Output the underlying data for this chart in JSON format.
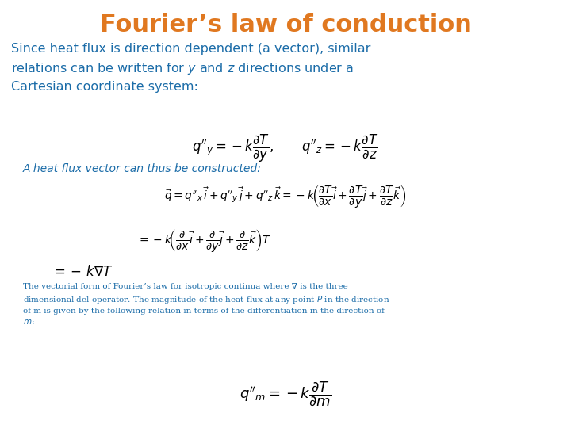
{
  "title": "Fourier’s law of conduction",
  "title_color": "#E07820",
  "title_fontsize": 22,
  "body_color": "#1B6CA8",
  "small_text_color": "#1B6CA8",
  "bg_color": "#FFFFFF",
  "intro_text": "Since heat flux is direction dependent (a vector), similar\nrelations can be written for $y$ and $z$ directions under a\nCartesian coordinate system:",
  "label_A": "A heat flux vector can thus be constructed:",
  "eq1": "$q''_y = -k\\dfrac{\\partial T}{\\partial y},\\qquad q''_z = -k\\dfrac{\\partial T}{\\partial z}$",
  "eq2": "$\\vec{q} = q''_x\\,\\vec{i} + q''_y\\,\\vec{j} + q''_z\\,\\vec{k} = -k\\!\\left(\\dfrac{\\partial T}{\\partial x}\\vec{i} + \\dfrac{\\partial T}{\\partial y}\\vec{j} + \\dfrac{\\partial T}{\\partial z}\\vec{k}\\right)$",
  "eq3": "$= -k\\!\\left(\\dfrac{\\partial}{\\partial x}\\vec{i} + \\dfrac{\\partial}{\\partial y}\\vec{j} + \\dfrac{\\partial}{\\partial z}\\vec{k}\\right)T$",
  "eq4": "$= -\\,k\\nabla T$",
  "small_text": "The vectorial form of Fourier’s law for isotropic continua where ∇ is the three\ndimensional del operator. The magnitude of the heat flux at any point $P$ in the direction\nof m is given by the following relation in terms of the differentiation in the direction of\n$m$:",
  "eq5": "$q''_m = -k\\dfrac{\\partial T}{\\partial m}$"
}
